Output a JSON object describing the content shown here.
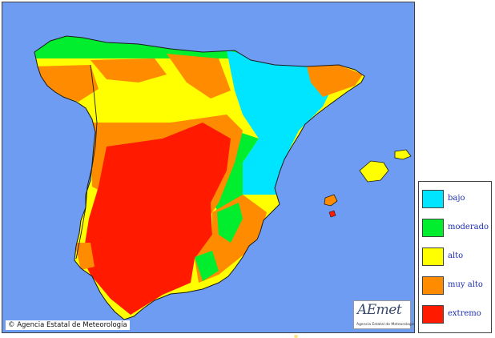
{
  "map": {
    "copyright": "© Agencia Estatal de Meteorología",
    "logo_text": "AEmet",
    "logo_subtext": "Agencia Estatal de Meteorología",
    "sea_color": "#6f9cf3"
  },
  "legend": {
    "items": [
      {
        "label": "bajo",
        "color": "#00e5ff"
      },
      {
        "label": "moderado",
        "color": "#00ee2e"
      },
      {
        "label": "alto",
        "color": "#ffff00"
      },
      {
        "label": "muy alto",
        "color": "#ff8c00"
      },
      {
        "label": "extremo",
        "color": "#ff1a00"
      }
    ]
  }
}
